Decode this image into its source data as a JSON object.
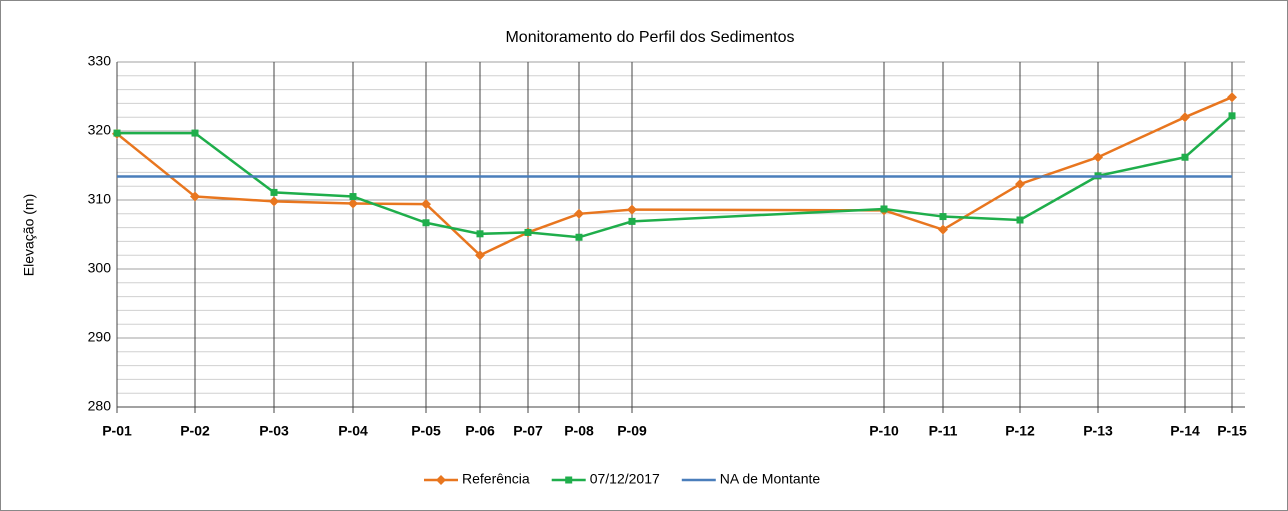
{
  "chart_data": {
    "type": "line",
    "title": "Monitoramento do Perfil dos Sedimentos",
    "y_label": "Elevação (m)",
    "x": [
      0,
      78,
      157,
      236,
      309,
      363,
      411,
      462,
      515,
      767,
      826,
      903,
      981,
      1068,
      1115
    ],
    "xlim": [
      0,
      1128
    ],
    "xticks": [
      {
        "value": 0,
        "label": "P-01"
      },
      {
        "value": 78,
        "label": "P-02"
      },
      {
        "value": 157,
        "label": "P-03"
      },
      {
        "value": 236,
        "label": "P-04"
      },
      {
        "value": 309,
        "label": "P-05"
      },
      {
        "value": 363,
        "label": "P-06"
      },
      {
        "value": 411,
        "label": "P-07"
      },
      {
        "value": 462,
        "label": "P-08"
      },
      {
        "value": 515,
        "label": "P-09"
      },
      {
        "value": 767,
        "label": "P-10"
      },
      {
        "value": 826,
        "label": "P-11"
      },
      {
        "value": 903,
        "label": "P-12"
      },
      {
        "value": 981,
        "label": "P-13"
      },
      {
        "value": 1068,
        "label": "P-14"
      },
      {
        "value": 1115,
        "label": "P-15"
      }
    ],
    "ylim": [
      280,
      330
    ],
    "yticks": [
      280,
      290,
      300,
      310,
      320,
      330
    ],
    "grid": true,
    "minor_grid": true,
    "legend": "bottom",
    "series": [
      {
        "name": "Referência",
        "color": "#e8761f",
        "marker": "diamond",
        "values": [
          319.6,
          310.5,
          309.8,
          309.5,
          309.4,
          302,
          305.3,
          308,
          308.6,
          308.5,
          305.7,
          312.3,
          316.2,
          322,
          324.9
        ]
      },
      {
        "name": "07/12/2017",
        "color": "#1fae4b",
        "marker": "square",
        "values": [
          319.7,
          319.7,
          311.1,
          310.5,
          306.7,
          305.1,
          305.3,
          304.6,
          306.9,
          308.7,
          307.6,
          307.1,
          313.5,
          316.2,
          322.2
        ]
      },
      {
        "name": "NA de Montante",
        "color": "#4a7ebb",
        "marker": "none",
        "values": [
          313.4,
          313.4,
          313.4,
          313.4,
          313.4,
          313.4,
          313.4,
          313.4,
          313.4,
          313.4,
          313.4,
          313.4,
          313.4,
          313.4,
          313.4
        ]
      }
    ]
  }
}
